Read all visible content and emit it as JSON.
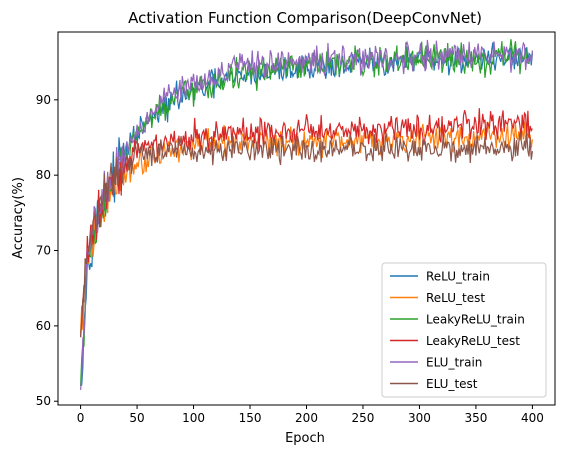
{
  "chart_data": {
    "type": "line",
    "title": "Activation Function Comparison(DeepConvNet)",
    "xlabel": "Epoch",
    "ylabel": "Accuracy(%)",
    "xlim": [
      -20,
      420
    ],
    "ylim": [
      49.5,
      99
    ],
    "xticks": [
      0,
      50,
      100,
      150,
      200,
      250,
      300,
      350,
      400
    ],
    "yticks": [
      50,
      60,
      70,
      80,
      90
    ],
    "grid": false,
    "legend_position": "lower right",
    "epochs": 401,
    "series": [
      {
        "name": "ReLU_train",
        "color": "#1f77b4",
        "x": [
          0,
          5,
          10,
          20,
          30,
          40,
          50,
          60,
          70,
          80,
          90,
          100,
          120,
          140,
          160,
          180,
          200,
          250,
          300,
          350,
          400
        ],
        "y": [
          52,
          66,
          72,
          76.5,
          80,
          83,
          85.5,
          87,
          88.5,
          89.5,
          90.5,
          91,
          92.2,
          93,
          93.5,
          94,
          94.3,
          94.8,
          95.2,
          95.5,
          95.7
        ],
        "noise": 0.9
      },
      {
        "name": "ReLU_test",
        "color": "#ff7f0e",
        "x": [
          0,
          5,
          10,
          20,
          30,
          40,
          50,
          60,
          80,
          100,
          150,
          200,
          250,
          300,
          350,
          400
        ],
        "y": [
          59,
          67,
          71,
          75,
          78.5,
          80.5,
          81.5,
          82.5,
          83.5,
          84,
          84.4,
          84.6,
          84.8,
          85,
          85.1,
          85.2
        ],
        "noise": 0.9
      },
      {
        "name": "LeakyReLU_train",
        "color": "#2ca02c",
        "x": [
          0,
          5,
          10,
          20,
          30,
          40,
          50,
          60,
          70,
          80,
          90,
          100,
          120,
          140,
          160,
          180,
          200,
          250,
          300,
          350,
          400
        ],
        "y": [
          52,
          65,
          71.5,
          76,
          79.5,
          82.5,
          85,
          87,
          88.5,
          89.5,
          90.5,
          91.2,
          92.5,
          93.3,
          93.8,
          94.1,
          94.4,
          94.9,
          95.3,
          95.5,
          95.8
        ],
        "noise": 1.0
      },
      {
        "name": "LeakyReLU_test",
        "color": "#d62728",
        "x": [
          0,
          5,
          10,
          20,
          30,
          40,
          50,
          60,
          80,
          100,
          150,
          200,
          250,
          300,
          350,
          400
        ],
        "y": [
          58.5,
          68,
          73,
          77,
          80,
          82,
          83,
          83.8,
          84.5,
          85,
          85.5,
          85.9,
          86.2,
          86.4,
          86.5,
          86.6
        ],
        "noise": 1.0
      },
      {
        "name": "ELU_train",
        "color": "#9467bd",
        "x": [
          0,
          5,
          10,
          20,
          30,
          40,
          50,
          60,
          70,
          80,
          90,
          100,
          120,
          140,
          160,
          180,
          200,
          250,
          300,
          350,
          400
        ],
        "y": [
          51.5,
          66,
          72.5,
          77,
          80.5,
          83.5,
          86,
          88,
          89.5,
          90.8,
          91.8,
          92.5,
          93.5,
          94.2,
          94.6,
          94.9,
          95.1,
          95.4,
          95.7,
          95.9,
          96
        ],
        "noise": 0.9
      },
      {
        "name": "ELU_test",
        "color": "#8c564b",
        "x": [
          0,
          5,
          10,
          20,
          30,
          40,
          50,
          60,
          80,
          100,
          150,
          200,
          250,
          300,
          350,
          400
        ],
        "y": [
          58.5,
          68,
          73,
          77,
          80,
          81.5,
          82.5,
          83,
          83.2,
          83.3,
          83.4,
          83.4,
          83.5,
          83.5,
          83.5,
          83.5
        ],
        "noise": 0.9
      }
    ]
  }
}
